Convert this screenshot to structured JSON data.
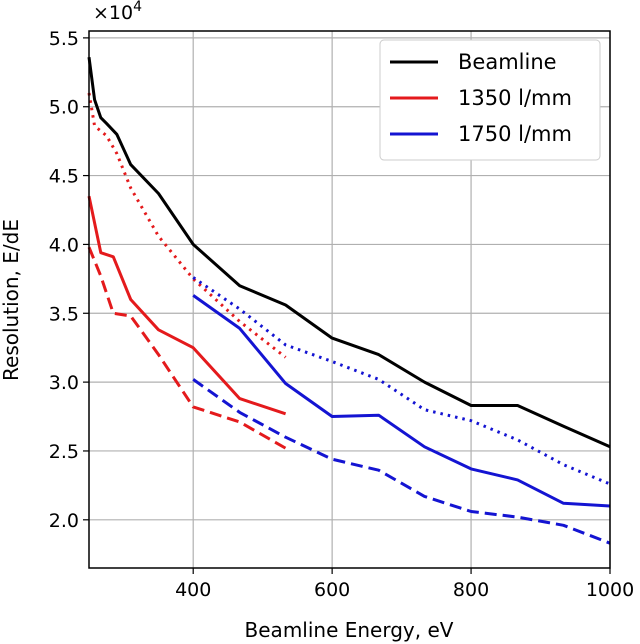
{
  "chart_data": {
    "type": "line",
    "xlabel": "Beamline Energy, eV",
    "ylabel": "Resolution, E/dE",
    "xlim": [
      250,
      1000
    ],
    "ylim": [
      16500,
      55500
    ],
    "x_ticks": [
      400,
      600,
      800,
      1000
    ],
    "y_ticks": [
      20000,
      25000,
      30000,
      35000,
      40000,
      45000,
      50000,
      55000
    ],
    "y_tick_labels": [
      "2.0",
      "2.5",
      "3.0",
      "3.5",
      "4.0",
      "4.5",
      "5.0",
      "5.5"
    ],
    "y_multiplier": {
      "base": "×10",
      "exponent": "4"
    },
    "x_tick_labels": [
      "400",
      "600",
      "800",
      "1000"
    ],
    "grid": true,
    "legend_position": "top-right",
    "legend": [
      {
        "label": "Beamline",
        "color": "#000000"
      },
      {
        "label": "1350 l/mm",
        "color": "#e41a1c"
      },
      {
        "label": "1750 l/mm",
        "color": "#1414d2"
      }
    ],
    "series": [
      {
        "group": "Beamline",
        "color": "#000000",
        "style": "solid",
        "x": [
          250,
          258,
          267,
          275,
          290,
          310,
          350,
          400,
          467,
          533,
          600,
          667,
          733,
          800,
          867,
          933,
          1000
        ],
        "y": [
          53600,
          50500,
          49200,
          48800,
          48000,
          45800,
          43700,
          40000,
          37000,
          35600,
          33200,
          32000,
          30000,
          28300,
          28300,
          26800,
          25300
        ]
      },
      {
        "group": "1350 l/mm",
        "color": "#e41a1c",
        "style": "solid",
        "x": [
          250,
          267,
          285,
          310,
          350,
          400,
          467,
          533
        ],
        "y": [
          43500,
          39400,
          39100,
          36000,
          33800,
          32500,
          28800,
          27700
        ]
      },
      {
        "group": "1350 l/mm",
        "color": "#e41a1c",
        "style": "dashed",
        "x": [
          250,
          267,
          285,
          310,
          350,
          400,
          467,
          533
        ],
        "y": [
          39800,
          37700,
          35000,
          34800,
          32000,
          28200,
          27100,
          25200
        ]
      },
      {
        "group": "1350 l/mm",
        "color": "#e41a1c",
        "style": "dotted",
        "x": [
          250,
          258,
          275,
          290,
          310,
          350,
          400,
          467,
          533
        ],
        "y": [
          51000,
          48600,
          47900,
          46600,
          44100,
          40600,
          37500,
          34400,
          31800
        ]
      },
      {
        "group": "1750 l/mm",
        "color": "#1414d2",
        "style": "solid",
        "x": [
          400,
          467,
          533,
          600,
          667,
          733,
          800,
          867,
          933,
          1000
        ],
        "y": [
          36300,
          33900,
          29900,
          27500,
          27600,
          25300,
          23700,
          22900,
          21200,
          21000
        ]
      },
      {
        "group": "1750 l/mm",
        "color": "#1414d2",
        "style": "dashed",
        "x": [
          400,
          467,
          533,
          600,
          667,
          733,
          800,
          867,
          933,
          1000
        ],
        "y": [
          30200,
          27800,
          26000,
          24400,
          23600,
          21700,
          20600,
          20200,
          19600,
          18300
        ]
      },
      {
        "group": "1750 l/mm",
        "color": "#1414d2",
        "style": "dotted",
        "x": [
          400,
          467,
          533,
          600,
          667,
          733,
          800,
          867,
          933,
          1000
        ],
        "y": [
          37600,
          35300,
          32700,
          31500,
          30200,
          28000,
          27200,
          25800,
          24000,
          22600
        ]
      }
    ]
  }
}
